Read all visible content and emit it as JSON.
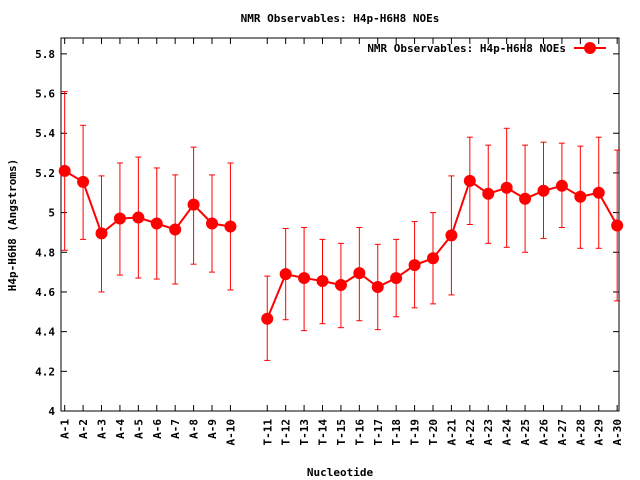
{
  "chart_data": {
    "type": "line",
    "title": "NMR Observables: H4p-H6H8 NOEs",
    "xlabel": "Nucleotide",
    "ylabel": "H4p-H6H8 (Angstroms)",
    "ylim": [
      4,
      5.88
    ],
    "yticks": [
      4,
      4.2,
      4.4,
      4.6,
      4.8,
      5,
      5.2,
      5.4,
      5.6,
      5.8
    ],
    "ytick_labels": [
      "4",
      "4.2",
      "4.4",
      "4.6",
      "4.8",
      "5",
      "5.2",
      "5.4",
      "5.6",
      "5.8"
    ],
    "grid": false,
    "legend_position": "top-right",
    "categories": [
      "A-1",
      "A-2",
      "A-3",
      "A-4",
      "A-5",
      "A-6",
      "A-7",
      "A-8",
      "A-9",
      "A-10",
      "T-11",
      "T-12",
      "T-13",
      "T-14",
      "T-15",
      "T-16",
      "T-17",
      "T-18",
      "T-19",
      "T-20",
      "A-21",
      "A-22",
      "A-23",
      "A-24",
      "A-25",
      "A-26",
      "A-27",
      "A-28",
      "A-29",
      "A-30"
    ],
    "x": [
      1,
      2,
      3,
      4,
      5,
      6,
      7,
      8,
      9,
      10,
      12,
      13,
      14,
      15,
      16,
      17,
      18,
      19,
      20,
      21,
      22,
      23,
      24,
      25,
      26,
      27,
      28,
      29,
      30,
      31
    ],
    "xlim": [
      0.8,
      31.1
    ],
    "series": [
      {
        "name": "NMR Observables: H4p-H6H8 NOEs",
        "color": "#ff0000",
        "values": [
          5.21,
          5.155,
          4.895,
          4.97,
          4.975,
          4.945,
          4.915,
          5.04,
          4.945,
          4.93,
          4.465,
          4.69,
          4.67,
          4.655,
          4.635,
          4.695,
          4.625,
          4.67,
          4.735,
          4.77,
          4.885,
          5.16,
          5.095,
          5.125,
          5.07,
          5.11,
          5.135,
          5.08,
          5.1,
          4.935
        ],
        "error_low": [
          4.81,
          4.865,
          4.6,
          4.685,
          4.67,
          4.665,
          4.64,
          4.74,
          4.7,
          4.61,
          4.255,
          4.46,
          4.405,
          4.44,
          4.42,
          4.455,
          4.41,
          4.475,
          4.52,
          4.54,
          4.585,
          4.94,
          4.845,
          4.825,
          4.8,
          4.87,
          4.925,
          4.82,
          4.82,
          4.555
        ],
        "error_high": [
          5.61,
          5.44,
          5.185,
          5.25,
          5.28,
          5.225,
          5.19,
          5.33,
          5.19,
          5.25,
          4.68,
          4.92,
          4.925,
          4.865,
          4.845,
          4.925,
          4.84,
          4.865,
          4.955,
          5.0,
          5.185,
          5.38,
          5.34,
          5.425,
          5.34,
          5.355,
          5.35,
          5.335,
          5.38,
          5.315
        ],
        "line_segments": [
          [
            0,
            9
          ],
          [
            10,
            29
          ]
        ]
      }
    ]
  }
}
